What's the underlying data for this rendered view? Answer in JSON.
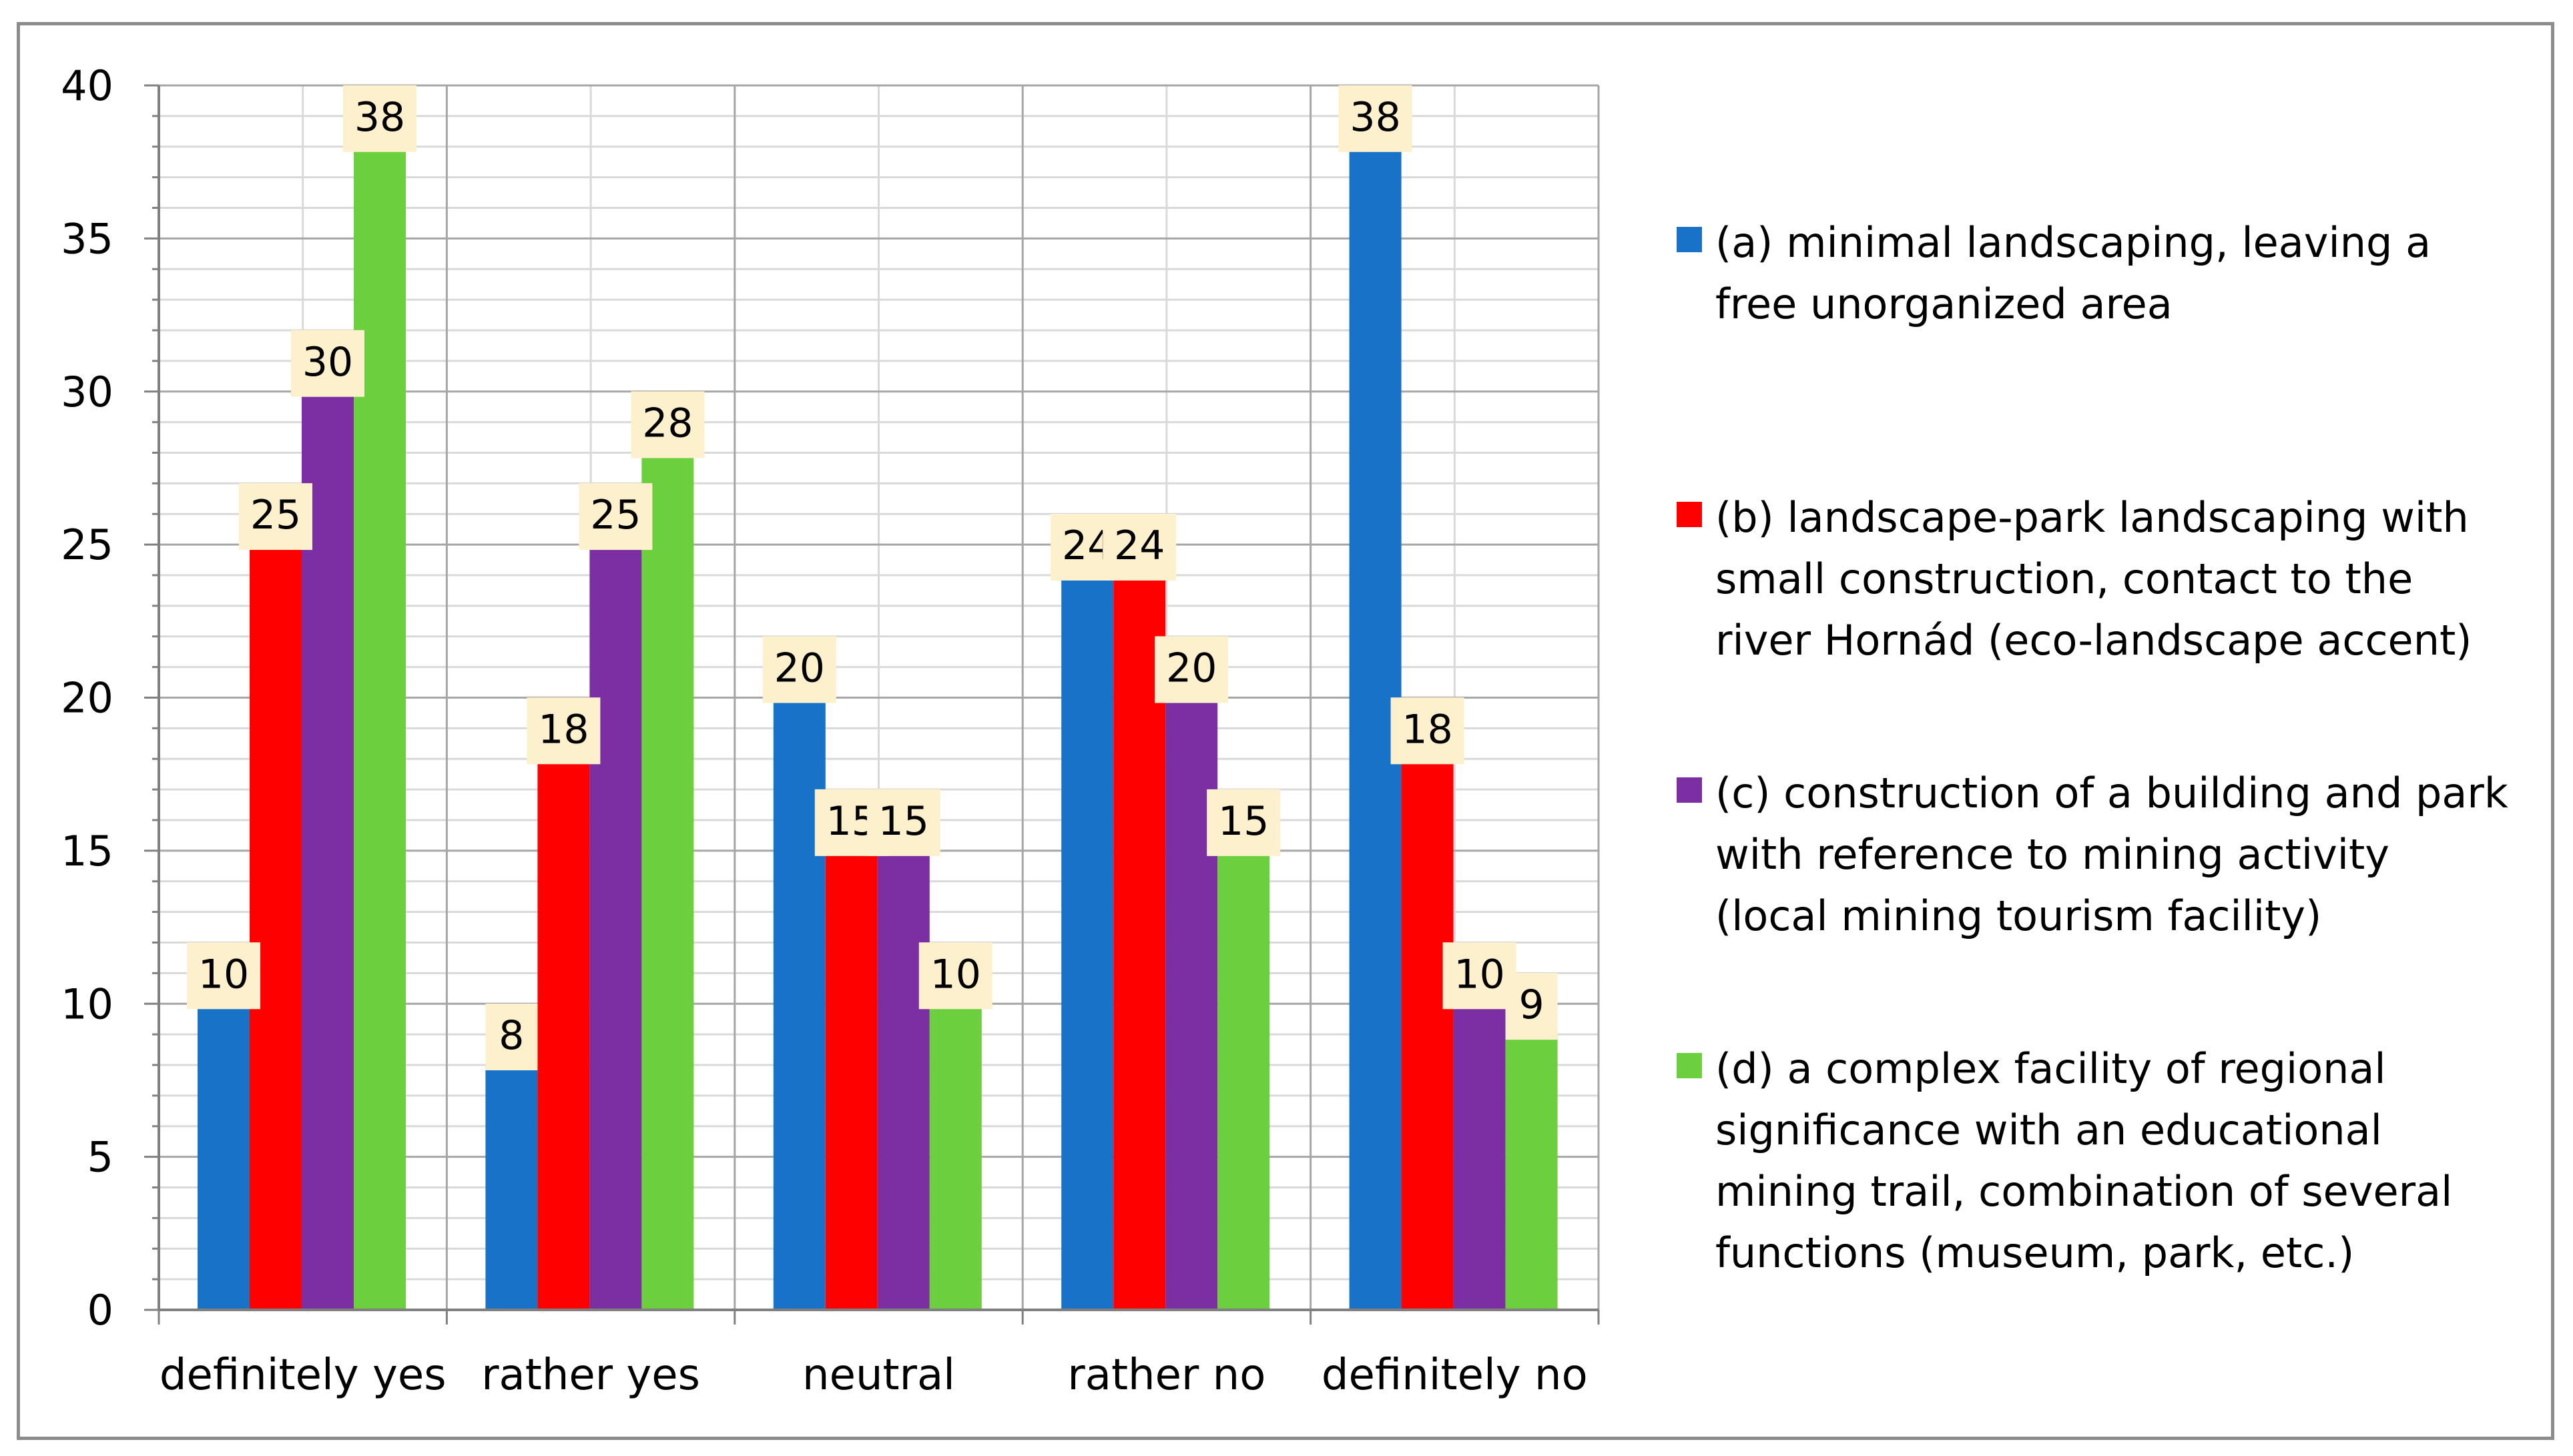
{
  "chart_data": {
    "type": "bar",
    "categories": [
      "definitely yes",
      "rather yes",
      "neutral",
      "rather no",
      "definitely no"
    ],
    "series": [
      {
        "name": "(a) minimal landscaping, leaving a free unorganized area",
        "color": "#1873c8",
        "values": [
          10,
          8,
          20,
          24,
          38
        ]
      },
      {
        "name": "(b) landscape-park landscaping with small construction, contact to the river Hornád (eco-landscape accent)",
        "color": "#ff0000",
        "values": [
          25,
          18,
          15,
          24,
          18
        ]
      },
      {
        "name": "(c) construction of a building and park with reference to mining activity (local mining tourism facility)",
        "color": "#7b2fa3",
        "values": [
          30,
          25,
          15,
          20,
          10
        ]
      },
      {
        "name": "(d) a complex facility of regional significance with an educational mining trail, combination of several functions (museum, park, etc.)",
        "color": "#6ccf3e",
        "values": [
          38,
          28,
          10,
          15,
          9
        ]
      }
    ],
    "ylim": [
      0,
      40
    ],
    "yticks": [
      0,
      5,
      10,
      15,
      20,
      25,
      30,
      35,
      40
    ],
    "ytick_labels": [
      "0",
      "5",
      "10",
      "15",
      "20",
      "25",
      "30",
      "35",
      "40"
    ],
    "grid": true,
    "legend_position": "right",
    "data_label_bg": "#fdf0cc",
    "title": "",
    "xlabel": "",
    "ylabel": ""
  },
  "legend": [
    {
      "label": "(a) minimal landscaping, leaving a\nfree unorganized area"
    },
    {
      "label": "(b) landscape-park landscaping with\nsmall construction, contact to the\nriver Hornád (eco-landscape accent)"
    },
    {
      "label": "(c) construction of a building and park\nwith reference to mining activity\n(local mining tourism facility)"
    },
    {
      "label": "(d) a complex facility of regional\nsignificance with an educational\nmining trail, combination of several\nfunctions (museum, park, etc.)"
    }
  ]
}
